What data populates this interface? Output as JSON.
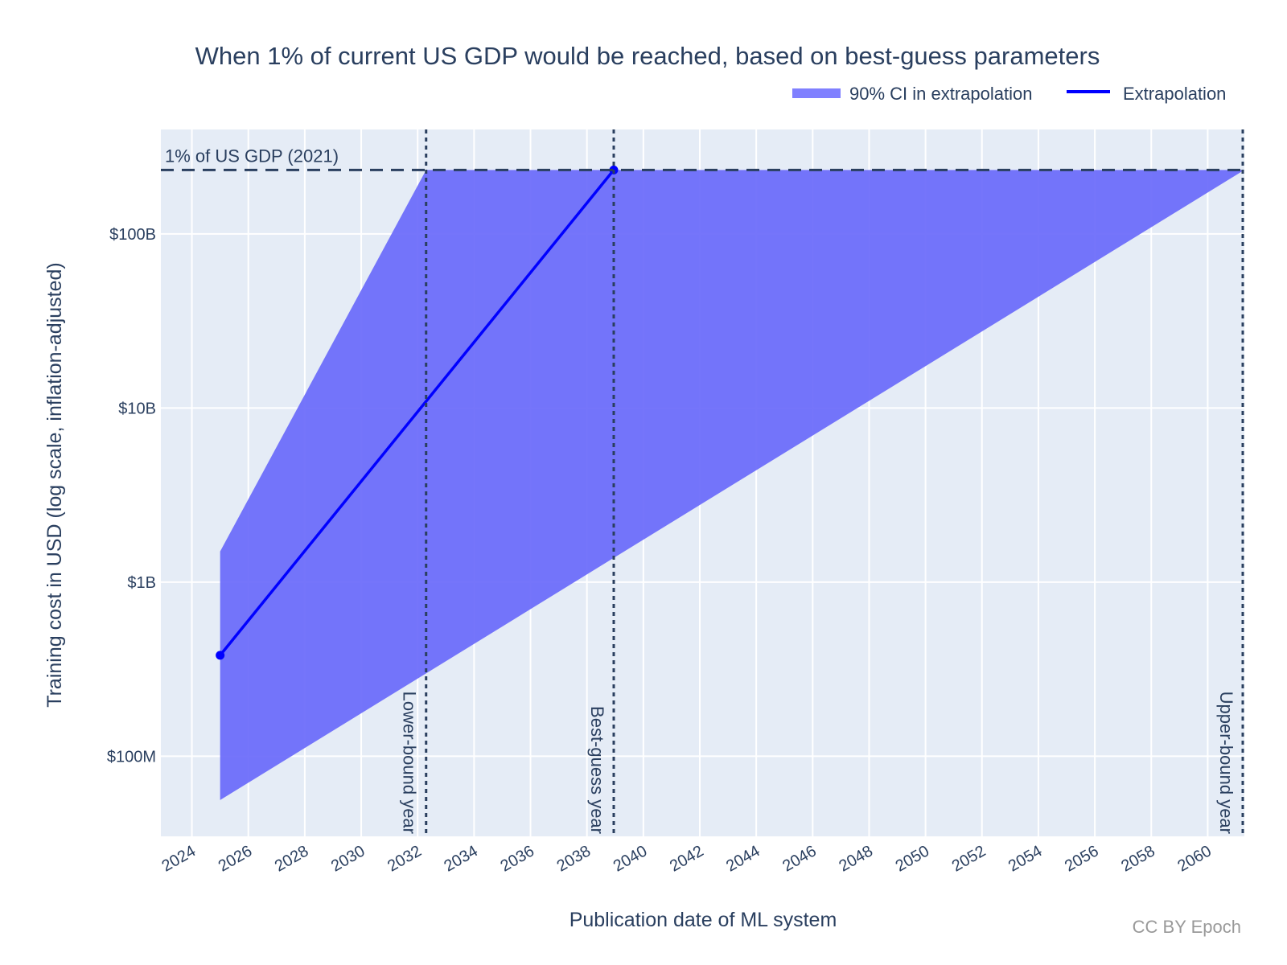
{
  "chart_data": {
    "type": "line",
    "title": "When 1% of current US GDP would be reached, based on best-guess parameters",
    "xlabel": "Publication date of ML system",
    "ylabel": "Training cost in USD (log scale, inflation-adjusted)",
    "xlim": [
      2022.9,
      2061.3
    ],
    "ylim_log10": [
      7.54,
      11.6
    ],
    "y_scale": "log",
    "grid": true,
    "legend_position": "top-right",
    "x_ticks": [
      2024,
      2026,
      2028,
      2030,
      2032,
      2034,
      2036,
      2038,
      2040,
      2042,
      2044,
      2046,
      2048,
      2050,
      2052,
      2054,
      2056,
      2058,
      2060
    ],
    "y_ticks": [
      {
        "value": 100000000,
        "label": "$100M"
      },
      {
        "value": 1000000000,
        "label": "$1B"
      },
      {
        "value": 10000000000,
        "label": "$10B"
      },
      {
        "value": 100000000000,
        "label": "$100B"
      }
    ],
    "series": [
      {
        "name": "90% CI in extrapolation",
        "type": "area",
        "color": "#6a6afa",
        "upper": {
          "x": [
            2025.0,
            2032.3,
            2061.3
          ],
          "y": [
            1500000000,
            233000000000,
            233000000000
          ]
        },
        "lower": {
          "x": [
            2025.0,
            2061.3
          ],
          "y": [
            56000000,
            233000000000
          ]
        }
      },
      {
        "name": "Extrapolation",
        "type": "line",
        "color": "#0000ff",
        "x": [
          2025.0,
          2038.95
        ],
        "y": [
          380000000,
          233000000000
        ]
      }
    ],
    "annotations": {
      "gdp_line": {
        "label": "1% of US GDP (2021)",
        "value": 233000000000
      },
      "vertical_lines": [
        {
          "label": "Lower-bound year",
          "x": 2032.3
        },
        {
          "label": "Best-guess year",
          "x": 2038.95
        },
        {
          "label": "Upper-bound year",
          "x": 2061.25
        }
      ]
    },
    "credit": "CC BY Epoch"
  }
}
